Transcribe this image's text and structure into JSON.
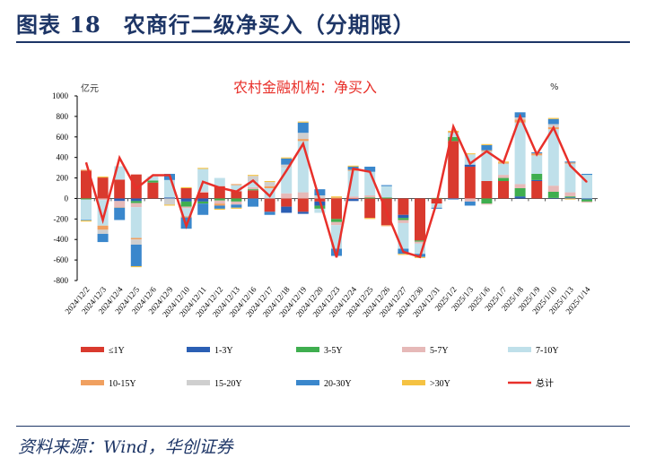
{
  "header": {
    "title": "图表 18　农商行二级净买入（分期限）"
  },
  "footer": {
    "source": "资料来源：Wind，华创证券"
  },
  "chart_data": {
    "type": "bar",
    "stacked": true,
    "title": "农村金融机构：净买入",
    "ylabel": "亿元",
    "y2label": "%",
    "ylim": [
      -800,
      1000
    ],
    "yticks": [
      1000,
      800,
      600,
      400,
      200,
      0,
      -200,
      -400,
      -600,
      -800
    ],
    "grid": false,
    "legend_position": "bottom",
    "categories": [
      "2024/12/2",
      "2024/12/3",
      "2024/12/4",
      "2024/12/5",
      "2024/12/6",
      "2024/12/9",
      "2024/12/10",
      "2024/12/11",
      "2024/12/12",
      "2024/12/13",
      "2024/12/16",
      "2024/12/17",
      "2024/12/18",
      "2024/12/19",
      "2024/12/20",
      "2024/12/23",
      "2024/12/24",
      "2024/12/25",
      "2024/12/26",
      "2024/12/27",
      "2024/12/30",
      "2024/12/31",
      "2025/1/2",
      "2025/1/3",
      "2025/1/6",
      "2025/1/7",
      "2025/1/8",
      "2025/1/9",
      "2025/1/10",
      "2025/1/13",
      "2025/1/14"
    ],
    "series": [
      {
        "name": "≤1Y",
        "color": "#d93a2e",
        "values": [
          270,
          204,
          184,
          234,
          155,
          0,
          100,
          58,
          120,
          70,
          80,
          -130,
          -80,
          -130,
          -30,
          -200,
          -5,
          -190,
          -260,
          -160,
          -410,
          -50,
          560,
          310,
          170,
          170,
          0,
          170,
          0,
          0,
          0
        ]
      },
      {
        "name": "1-3Y",
        "color": "#2b5fb4",
        "values": [
          0,
          0,
          -25,
          -25,
          0,
          10,
          -30,
          -30,
          0,
          0,
          0,
          0,
          -60,
          -20,
          -40,
          0,
          -20,
          0,
          0,
          -30,
          0,
          0,
          0,
          20,
          0,
          0,
          20,
          10,
          5,
          10,
          -10
        ]
      },
      {
        "name": "3-5Y",
        "color": "#3fae4f",
        "values": [
          -10,
          0,
          0,
          -20,
          20,
          0,
          -50,
          -20,
          -20,
          -30,
          10,
          0,
          0,
          0,
          -30,
          -30,
          0,
          10,
          10,
          -20,
          -10,
          5,
          40,
          0,
          -50,
          30,
          80,
          60,
          60,
          10,
          -20
        ]
      },
      {
        "name": "5-7Y",
        "color": "#e6b9b8",
        "values": [
          0,
          -15,
          -60,
          -40,
          0,
          0,
          -15,
          10,
          -30,
          -30,
          20,
          0,
          50,
          60,
          0,
          -30,
          20,
          20,
          0,
          -30,
          -20,
          0,
          0,
          -30,
          -10,
          30,
          40,
          0,
          60,
          40,
          -10
        ]
      },
      {
        "name": "7-10Y",
        "color": "#bfe0ea",
        "values": [
          -200,
          -250,
          130,
          -300,
          40,
          170,
          -80,
          220,
          80,
          60,
          60,
          100,
          250,
          500,
          -40,
          -230,
          250,
          230,
          110,
          -250,
          -100,
          -40,
          40,
          100,
          290,
          110,
          600,
          180,
          550,
          280,
          230
        ]
      },
      {
        "name": "10-15Y",
        "color": "#f0a060",
        "values": [
          10,
          -40,
          -5,
          -15,
          0,
          0,
          -10,
          0,
          -20,
          10,
          0,
          20,
          0,
          20,
          0,
          10,
          10,
          0,
          -10,
          0,
          0,
          0,
          10,
          0,
          10,
          10,
          30,
          20,
          20,
          10,
          0
        ]
      },
      {
        "name": "15-20Y",
        "color": "#cfcfcf",
        "values": [
          0,
          -40,
          0,
          -50,
          0,
          -60,
          0,
          0,
          0,
          0,
          50,
          40,
          30,
          60,
          30,
          0,
          0,
          0,
          0,
          0,
          0,
          0,
          0,
          0,
          0,
          0,
          20,
          0,
          30,
          0,
          0
        ]
      },
      {
        "name": "20-30Y",
        "color": "#3a87cc",
        "values": [
          -5,
          -80,
          -120,
          -210,
          0,
          60,
          -110,
          -110,
          -30,
          -30,
          -80,
          -30,
          60,
          100,
          60,
          -70,
          30,
          50,
          10,
          -50,
          -30,
          -10,
          -10,
          -40,
          50,
          0,
          50,
          10,
          50,
          10,
          10
        ]
      },
      {
        "name": ">30Y",
        "color": "#f5c242",
        "values": [
          -10,
          10,
          0,
          -10,
          0,
          -10,
          10,
          10,
          -10,
          -10,
          10,
          10,
          10,
          10,
          0,
          10,
          10,
          -10,
          0,
          -10,
          -10,
          0,
          10,
          10,
          10,
          10,
          0,
          0,
          10,
          -10,
          0
        ]
      }
    ],
    "line": {
      "name": "总计",
      "color": "#e8302a",
      "values": [
        350,
        -210,
        396,
        96,
        227,
        227,
        -268,
        163,
        105,
        67,
        175,
        23,
        271,
        533,
        -20,
        -574,
        290,
        260,
        -130,
        -520,
        -570,
        -40,
        700,
        340,
        460,
        350,
        800,
        430,
        690,
        320,
        160
      ]
    }
  }
}
